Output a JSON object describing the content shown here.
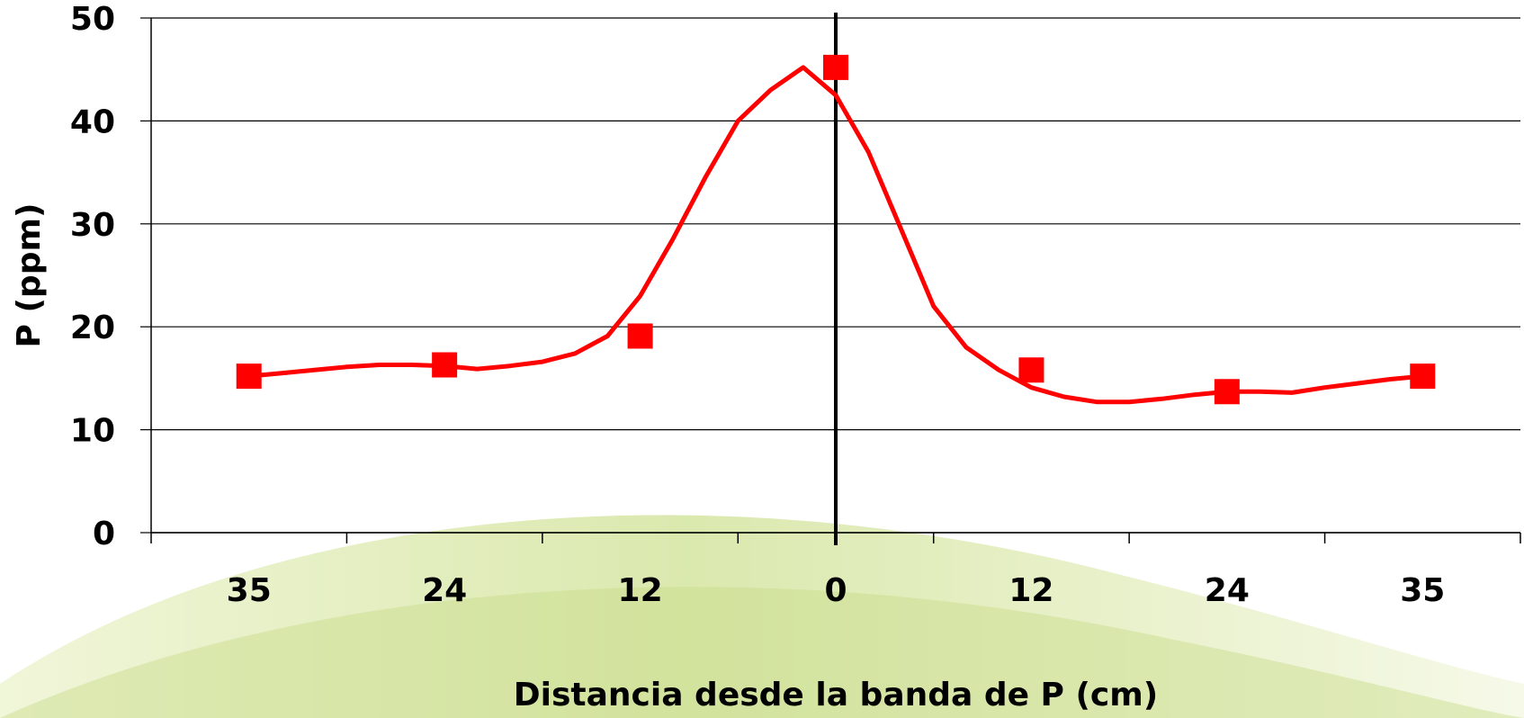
{
  "colors": {
    "series": "#ff0000",
    "gridline": "#000000",
    "band_line": "#000000",
    "background_swirl": "#d9e8a6"
  },
  "chart_data": {
    "type": "line",
    "title": "",
    "xlabel": "Distancia desde la banda de P (cm)",
    "ylabel": "P (ppm)",
    "ylim": [
      0,
      50
    ],
    "y_ticks": [
      "0",
      "10",
      "20",
      "30",
      "40",
      "50"
    ],
    "x_tick_labels": [
      "35",
      "24",
      "12",
      "0",
      "12",
      "24",
      "35"
    ],
    "x_units": "cm from band (left = one side, right = other side)",
    "grid": "horizontal",
    "legend": "none",
    "band_marker_at": "0",
    "series": [
      {
        "marker": "square",
        "points": [
          {
            "x": "35",
            "y": 15.2
          },
          {
            "x": "24",
            "y": 16.3
          },
          {
            "x": "12",
            "y": 19.1
          },
          {
            "x": "0",
            "y": 45.2
          },
          {
            "x": "12",
            "y": 15.8
          },
          {
            "x": "24",
            "y": 13.7
          },
          {
            "x": "35",
            "y": 15.2
          }
        ],
        "smoothed_curve_y": [
          15.2,
          15.5,
          15.8,
          16.1,
          16.3,
          16.3,
          16.2,
          15.9,
          16.2,
          16.6,
          17.4,
          19.1,
          23.0,
          28.5,
          34.5,
          40.0,
          43.0,
          45.2,
          42.5,
          37.0,
          29.5,
          22.0,
          18.0,
          15.8,
          14.1,
          13.2,
          12.7,
          12.7,
          13.0,
          13.4,
          13.7,
          13.7,
          13.6,
          14.1,
          14.5,
          14.9,
          15.2
        ]
      }
    ]
  }
}
